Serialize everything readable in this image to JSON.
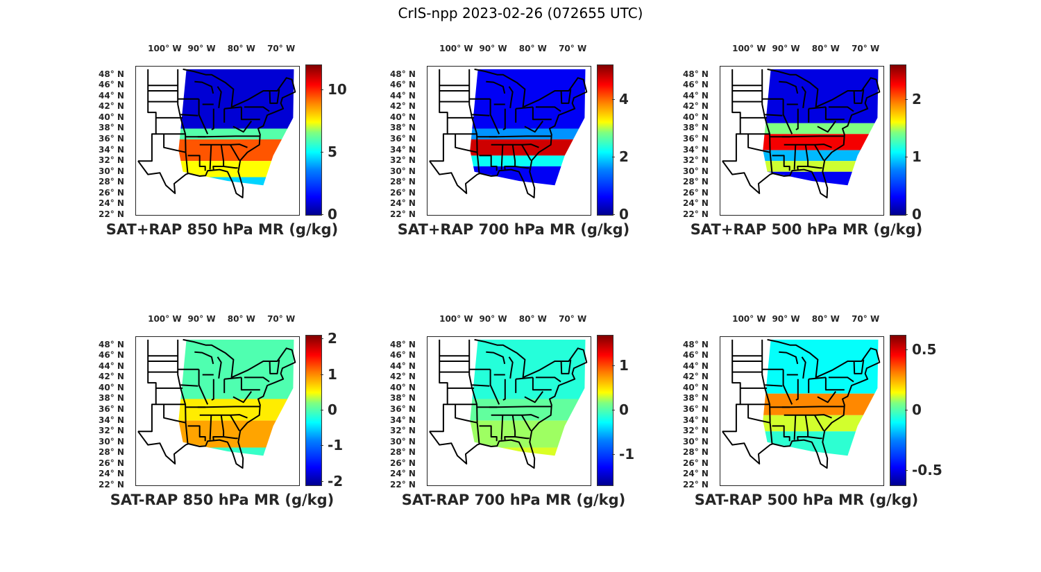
{
  "figure_title": "CrIS-npp 2023-02-26 (072655 UTC)",
  "chart_data": [
    {
      "type": "heatmap",
      "title": "SAT+RAP 850 hPa MR (g/kg)",
      "colormap": "jet",
      "clim": [
        0,
        12
      ],
      "colorbar_ticks": [
        "0",
        "5",
        "10"
      ],
      "colorbar_tick_values": [
        0,
        5,
        10
      ],
      "lon_labels": [
        "100° W",
        "90° W",
        "80° W",
        "70° W"
      ],
      "lat_labels": [
        "48° N",
        "46° N",
        "44° N",
        "42° N",
        "40° N",
        "38° N",
        "36° N",
        "34° N",
        "32° N",
        "30° N",
        "28° N",
        "26° N",
        "24° N",
        "22° N"
      ],
      "field": "total",
      "swath_bands": [
        {
          "lat_range": [
            38,
            49
          ],
          "value": 1.0
        },
        {
          "lat_range": [
            36,
            38
          ],
          "value": 5.5
        },
        {
          "lat_range": [
            32,
            36
          ],
          "value": 9.5
        },
        {
          "lat_range": [
            29,
            32
          ],
          "value": 7.5
        },
        {
          "lat_range": [
            27,
            29
          ],
          "value": 4.0
        }
      ]
    },
    {
      "type": "heatmap",
      "title": "SAT+RAP 700 hPa MR (g/kg)",
      "colormap": "jet",
      "clim": [
        0,
        5.2
      ],
      "colorbar_ticks": [
        "0",
        "2",
        "4"
      ],
      "colorbar_tick_values": [
        0,
        2,
        4
      ],
      "lon_labels": [
        "100° W",
        "90° W",
        "80° W",
        "70° W"
      ],
      "lat_labels": [
        "48° N",
        "46° N",
        "44° N",
        "42° N",
        "40° N",
        "38° N",
        "36° N",
        "34° N",
        "32° N",
        "30° N",
        "28° N",
        "26° N",
        "24° N",
        "22° N"
      ],
      "field": "total",
      "swath_bands": [
        {
          "lat_range": [
            38,
            49
          ],
          "value": 0.6
        },
        {
          "lat_range": [
            36,
            38
          ],
          "value": 1.4
        },
        {
          "lat_range": [
            33,
            36
          ],
          "value": 4.8
        },
        {
          "lat_range": [
            31,
            33
          ],
          "value": 2.0
        },
        {
          "lat_range": [
            27,
            31
          ],
          "value": 0.6
        }
      ]
    },
    {
      "type": "heatmap",
      "title": "SAT+RAP 500 hPa MR (g/kg)",
      "colormap": "jet",
      "clim": [
        0,
        2.6
      ],
      "colorbar_ticks": [
        "0",
        "1",
        "2"
      ],
      "colorbar_tick_values": [
        0,
        1,
        2
      ],
      "lon_labels": [
        "100° W",
        "90° W",
        "80° W",
        "70° W"
      ],
      "lat_labels": [
        "48° N",
        "46° N",
        "44° N",
        "42° N",
        "40° N",
        "38° N",
        "36° N",
        "34° N",
        "32° N",
        "30° N",
        "28° N",
        "26° N",
        "24° N",
        "22° N"
      ],
      "field": "total",
      "swath_bands": [
        {
          "lat_range": [
            39,
            49
          ],
          "value": 0.25
        },
        {
          "lat_range": [
            37,
            39
          ],
          "value": 1.3
        },
        {
          "lat_range": [
            34,
            37
          ],
          "value": 2.3
        },
        {
          "lat_range": [
            32,
            34
          ],
          "value": 0.8
        },
        {
          "lat_range": [
            30,
            32
          ],
          "value": 1.5
        },
        {
          "lat_range": [
            27,
            30
          ],
          "value": 0.3
        }
      ]
    },
    {
      "type": "heatmap",
      "title": "SAT-RAP 850 hPa MR (g/kg)",
      "colormap": "jet",
      "clim": [
        -2.1,
        2.1
      ],
      "colorbar_ticks": [
        "-2",
        "-1",
        "0",
        "1",
        "2"
      ],
      "colorbar_tick_values": [
        -2,
        -1,
        0,
        1,
        2
      ],
      "lon_labels": [
        "100° W",
        "90° W",
        "80° W",
        "70° W"
      ],
      "lat_labels": [
        "48° N",
        "46° N",
        "44° N",
        "42° N",
        "40° N",
        "38° N",
        "36° N",
        "34° N",
        "32° N",
        "30° N",
        "28° N",
        "26° N",
        "24° N",
        "22° N"
      ],
      "field": "difference",
      "swath_bands": [
        {
          "lat_range": [
            38,
            49
          ],
          "value": -0.2
        },
        {
          "lat_range": [
            34,
            38
          ],
          "value": 0.6
        },
        {
          "lat_range": [
            29,
            34
          ],
          "value": 0.9
        },
        {
          "lat_range": [
            27,
            29
          ],
          "value": -0.3
        }
      ]
    },
    {
      "type": "heatmap",
      "title": "SAT-RAP 700 hPa MR (g/kg)",
      "colormap": "jet",
      "clim": [
        -1.7,
        1.7
      ],
      "colorbar_ticks": [
        "-1",
        "0",
        "1"
      ],
      "colorbar_tick_values": [
        -1,
        0,
        1
      ],
      "lon_labels": [
        "100° W",
        "90° W",
        "80° W",
        "70° W"
      ],
      "lat_labels": [
        "48° N",
        "46° N",
        "44° N",
        "42° N",
        "40° N",
        "38° N",
        "36° N",
        "34° N",
        "32° N",
        "30° N",
        "28° N",
        "26° N",
        "24° N",
        "22° N"
      ],
      "field": "difference",
      "swath_bands": [
        {
          "lat_range": [
            38,
            49
          ],
          "value": -0.3
        },
        {
          "lat_range": [
            34,
            38
          ],
          "value": -0.1
        },
        {
          "lat_range": [
            29,
            34
          ],
          "value": 0.1
        },
        {
          "lat_range": [
            27,
            29
          ],
          "value": 0.3
        }
      ]
    },
    {
      "type": "heatmap",
      "title": "SAT-RAP 500 hPa MR (g/kg)",
      "colormap": "jet",
      "clim": [
        -0.62,
        0.62
      ],
      "colorbar_ticks": [
        "-0.5",
        "0",
        "0.5"
      ],
      "colorbar_tick_values": [
        -0.5,
        0,
        0.5
      ],
      "lon_labels": [
        "100° W",
        "90° W",
        "80° W",
        "70° W"
      ],
      "lat_labels": [
        "48° N",
        "46° N",
        "44° N",
        "42° N",
        "40° N",
        "38° N",
        "36° N",
        "34° N",
        "32° N",
        "30° N",
        "28° N",
        "26° N",
        "24° N",
        "22° N"
      ],
      "field": "difference",
      "swath_bands": [
        {
          "lat_range": [
            39,
            49
          ],
          "value": -0.15
        },
        {
          "lat_range": [
            35,
            39
          ],
          "value": 0.3
        },
        {
          "lat_range": [
            32,
            35
          ],
          "value": 0.1
        },
        {
          "lat_range": [
            27,
            32
          ],
          "value": -0.1
        }
      ]
    }
  ]
}
